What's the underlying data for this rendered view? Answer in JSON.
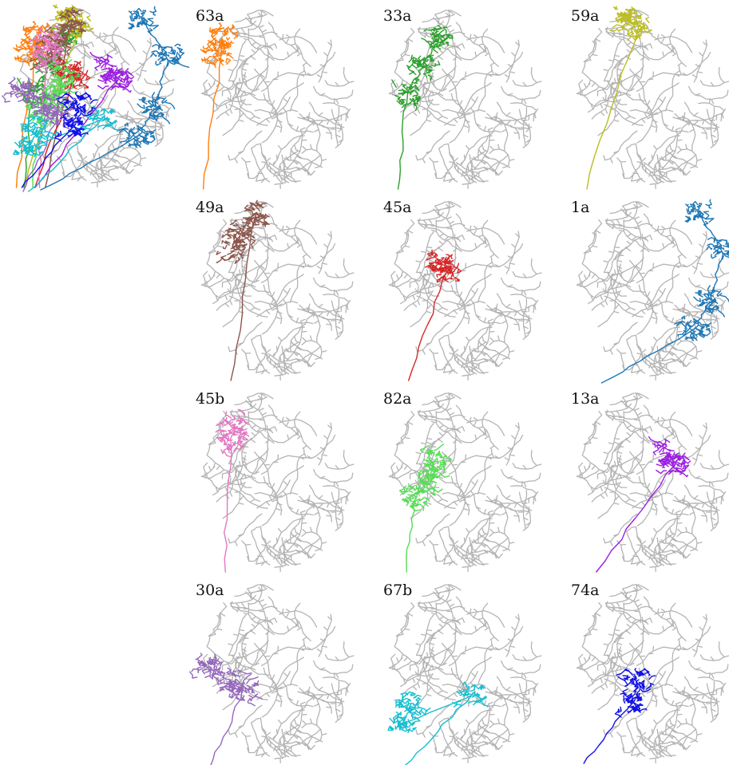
{
  "panels": [
    {
      "label": "63a"
    },
    {
      "label": "33a"
    },
    {
      "label": "59a"
    },
    {
      "label": "49a"
    },
    {
      "label": "45a"
    },
    {
      "label": "1a"
    },
    {
      "label": "45b"
    },
    {
      "label": "82a"
    },
    {
      "label": "13a"
    },
    {
      "label": "30a"
    },
    {
      "label": "67b"
    },
    {
      "label": "74a"
    }
  ]
}
